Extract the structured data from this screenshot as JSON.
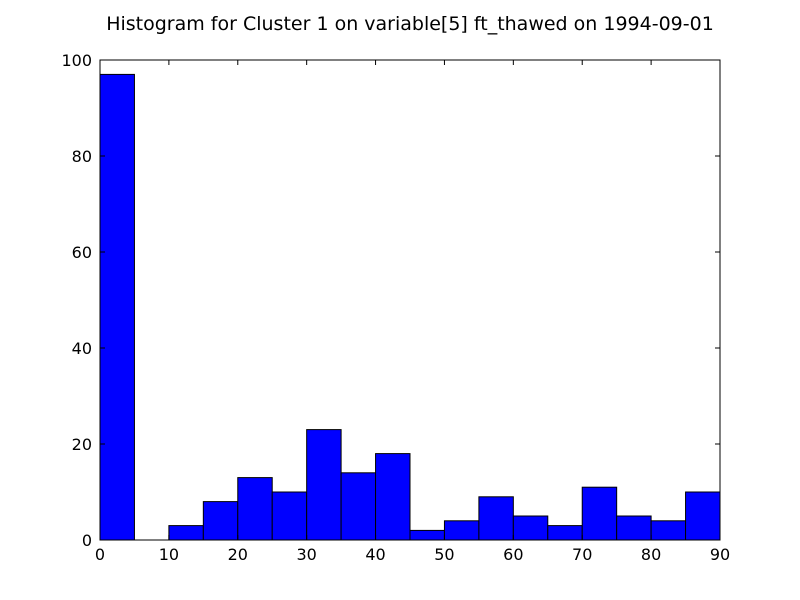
{
  "chart_data": {
    "type": "bar",
    "title": "Histogram for Cluster 1 on variable[5] ft_thawed on 1994-09-01",
    "xlabel": "",
    "ylabel": "",
    "bin_edges": [
      0,
      5,
      10,
      15,
      20,
      25,
      30,
      35,
      40,
      45,
      50,
      55,
      60,
      65,
      70,
      75,
      80,
      85,
      90
    ],
    "values": [
      97,
      0,
      3,
      8,
      13,
      10,
      23,
      14,
      18,
      2,
      4,
      9,
      5,
      3,
      11,
      5,
      4,
      10
    ],
    "xlim": [
      0,
      90
    ],
    "ylim": [
      0,
      100
    ],
    "xticks": [
      "0",
      "10",
      "20",
      "30",
      "40",
      "50",
      "60",
      "70",
      "80",
      "90"
    ],
    "yticks": [
      "0",
      "20",
      "40",
      "60",
      "80",
      "100"
    ],
    "bar_color": "#0000ff",
    "edge_color": "#000000",
    "grid": false
  }
}
